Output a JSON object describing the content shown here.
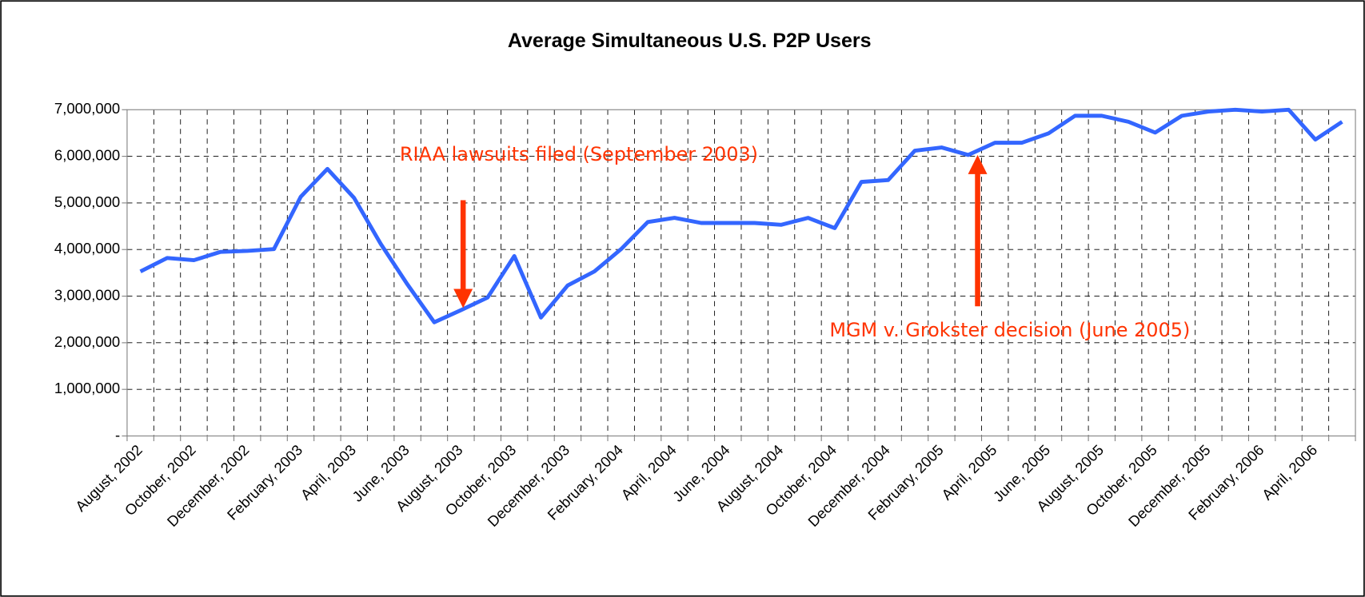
{
  "chart_data": {
    "type": "line",
    "title": "Average Simultaneous U.S. P2P Users",
    "categories": [
      "August, 2002",
      null,
      "October, 2002",
      null,
      "December, 2002",
      null,
      "February, 2003",
      null,
      "April, 2003",
      null,
      "June, 2003",
      null,
      "August, 2003",
      null,
      "October, 2003",
      null,
      "December, 2003",
      null,
      "February, 2004",
      null,
      "April, 2004",
      null,
      "June, 2004",
      null,
      "August, 2004",
      null,
      "October, 2004",
      null,
      "December, 2004",
      null,
      "February, 2005",
      null,
      "April, 2005",
      null,
      "June, 2005",
      null,
      "August, 2005",
      null,
      "October, 2005",
      null,
      "December, 2005",
      null,
      "February, 2006",
      null,
      "April, 2006",
      null
    ],
    "series": [
      {
        "name": "Average Simultaneous U.S. P2P Users",
        "color": "#3366ff",
        "values": [
          3530000,
          3820000,
          3770000,
          3950000,
          3970000,
          4010000,
          5130000,
          5730000,
          5110000,
          4120000,
          3250000,
          2440000,
          2700000,
          2970000,
          3860000,
          2540000,
          3230000,
          3530000,
          4010000,
          4590000,
          4680000,
          4570000,
          4570000,
          4570000,
          4530000,
          4680000,
          4460000,
          5450000,
          5490000,
          6120000,
          6190000,
          6030000,
          6290000,
          6290000,
          6490000,
          6870000,
          6870000,
          6740000,
          6510000,
          6870000,
          6960000,
          7000000,
          6960000,
          7000000,
          6360000,
          6740000
        ]
      }
    ],
    "ylim": [
      0,
      7000000
    ],
    "yticks": [
      {
        "value": 0,
        "label": "-"
      },
      {
        "value": 1000000,
        "label": "1,000,000"
      },
      {
        "value": 2000000,
        "label": "2,000,000"
      },
      {
        "value": 3000000,
        "label": "3,000,000"
      },
      {
        "value": 4000000,
        "label": "4,000,000"
      },
      {
        "value": 5000000,
        "label": "5,000,000"
      },
      {
        "value": 6000000,
        "label": "6,000,000"
      },
      {
        "value": 7000000,
        "label": "7,000,000"
      }
    ],
    "grid": true,
    "annotations": [
      "RIAA lawsuits filed (September 2003)",
      "MGM v. Grokster decision (June 2005)"
    ]
  }
}
